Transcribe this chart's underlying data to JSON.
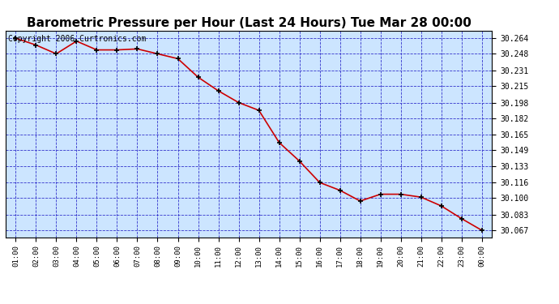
{
  "title": "Barometric Pressure per Hour (Last 24 Hours) Tue Mar 28 00:00",
  "copyright": "Copyright 2006 Curtronics.com",
  "x_labels": [
    "01:00",
    "02:00",
    "03:00",
    "04:00",
    "05:00",
    "06:00",
    "07:00",
    "08:00",
    "09:00",
    "10:00",
    "11:00",
    "12:00",
    "13:00",
    "14:00",
    "15:00",
    "16:00",
    "17:00",
    "18:00",
    "19:00",
    "20:00",
    "21:00",
    "22:00",
    "23:00",
    "00:00"
  ],
  "y_values": [
    30.264,
    30.257,
    30.248,
    30.261,
    30.252,
    30.252,
    30.253,
    30.248,
    30.243,
    30.224,
    30.21,
    30.198,
    30.19,
    30.157,
    30.138,
    30.116,
    30.108,
    30.097,
    30.104,
    30.104,
    30.101,
    30.092,
    30.079,
    30.067
  ],
  "y_ticks": [
    30.067,
    30.083,
    30.1,
    30.116,
    30.133,
    30.149,
    30.165,
    30.182,
    30.198,
    30.215,
    30.231,
    30.248,
    30.264
  ],
  "line_color": "#cc0000",
  "marker_color": "#000000",
  "bg_color": "#ffffff",
  "plot_bg": "#cce5ff",
  "grid_color": "#3333cc",
  "title_fontsize": 11,
  "copyright_fontsize": 7,
  "ylim_min": 30.06,
  "ylim_max": 30.272
}
